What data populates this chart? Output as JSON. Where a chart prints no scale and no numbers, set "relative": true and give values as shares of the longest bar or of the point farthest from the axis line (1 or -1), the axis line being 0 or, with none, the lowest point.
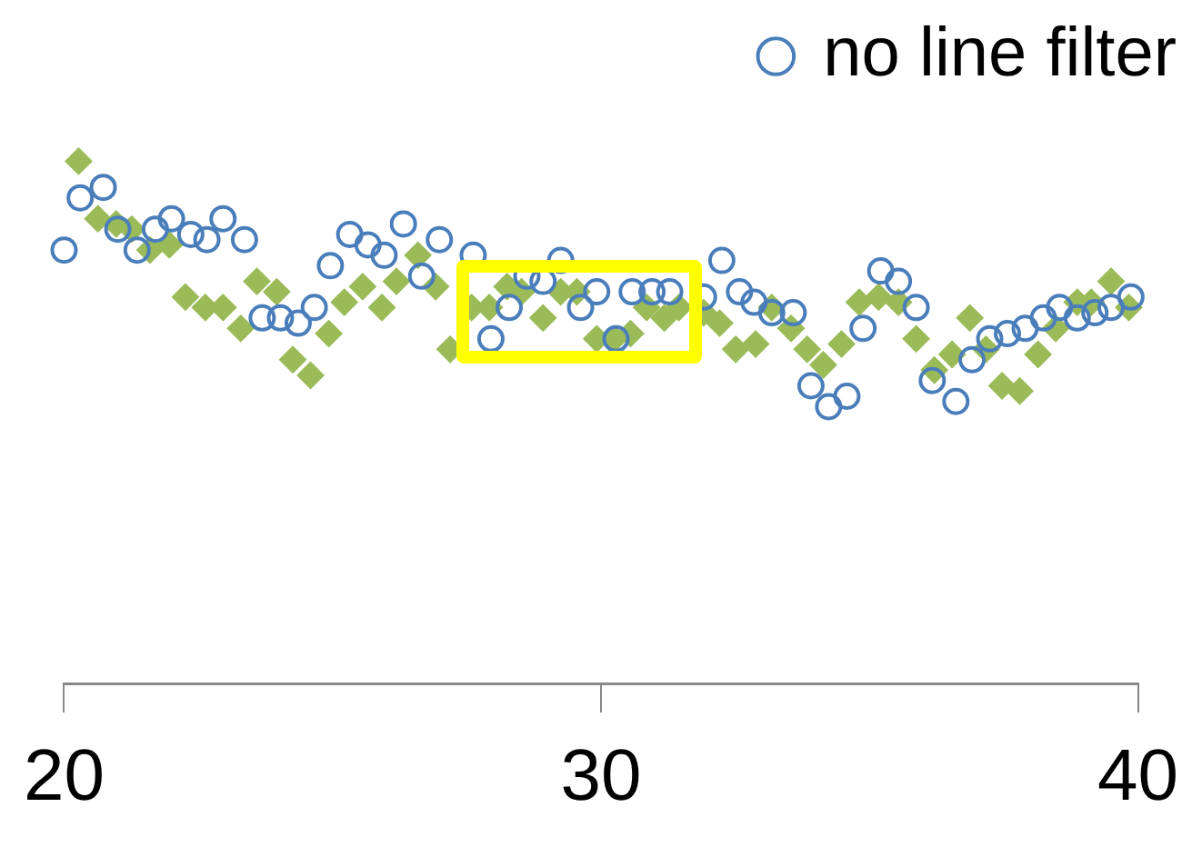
{
  "chart_data": {
    "type": "scatter",
    "relative": true,
    "xlim": [
      20,
      40
    ],
    "xticks": [
      20,
      30,
      40
    ],
    "legend": "top right",
    "grid": false,
    "series": [
      {
        "name": "no line filter",
        "color": "#4a7ebb",
        "marker": "circle",
        "x": [
          20.0,
          20.3,
          20.73,
          21.0,
          21.36,
          21.7,
          22.0,
          22.36,
          22.66,
          22.96,
          23.36,
          23.69,
          24.03,
          24.36,
          24.66,
          24.96,
          25.32,
          25.66,
          25.96,
          26.32,
          26.66,
          26.99,
          27.62,
          27.95,
          28.29,
          28.62,
          28.92,
          29.25,
          29.62,
          29.92,
          30.28,
          30.58,
          30.95,
          31.28,
          31.91,
          32.25,
          32.58,
          32.85,
          33.18,
          33.58,
          33.91,
          34.24,
          34.58,
          34.88,
          35.21,
          35.54,
          35.87,
          36.17,
          36.61,
          36.91,
          37.24,
          37.57,
          37.9,
          38.24,
          38.54,
          38.87,
          39.2,
          39.5,
          39.87
        ],
        "values": [
          0.83,
          0.93,
          0.95,
          0.87,
          0.83,
          0.87,
          0.89,
          0.86,
          0.85,
          0.89,
          0.85,
          0.7,
          0.7,
          0.69,
          0.72,
          0.8,
          0.86,
          0.84,
          0.82,
          0.88,
          0.78,
          0.85,
          0.82,
          0.66,
          0.72,
          0.78,
          0.77,
          0.81,
          0.72,
          0.75,
          0.66,
          0.75,
          0.75,
          0.75,
          0.74,
          0.81,
          0.75,
          0.73,
          0.71,
          0.71,
          0.57,
          0.53,
          0.55,
          0.68,
          0.79,
          0.77,
          0.72,
          0.58,
          0.54,
          0.62,
          0.66,
          0.67,
          0.68,
          0.7,
          0.72,
          0.7,
          0.71,
          0.72,
          0.74
        ]
      },
      {
        "color": "#9bbb59",
        "marker": "diamond",
        "x": [
          20.27,
          20.63,
          20.97,
          21.26,
          21.6,
          21.96,
          22.26,
          22.63,
          22.96,
          23.29,
          23.59,
          23.96,
          24.26,
          24.59,
          24.93,
          25.22,
          25.56,
          25.92,
          26.19,
          26.59,
          26.92,
          27.19,
          27.59,
          27.92,
          28.25,
          28.52,
          28.92,
          29.25,
          29.55,
          29.92,
          30.25,
          30.55,
          30.85,
          31.18,
          31.45,
          31.91,
          32.21,
          32.51,
          32.88,
          33.18,
          33.54,
          33.84,
          34.14,
          34.48,
          34.81,
          35.17,
          35.54,
          35.87,
          36.21,
          36.54,
          36.87,
          37.17,
          37.47,
          37.8,
          38.14,
          38.47,
          38.87,
          39.13,
          39.5,
          39.83
        ],
        "values": [
          1.0,
          0.89,
          0.88,
          0.87,
          0.83,
          0.84,
          0.74,
          0.72,
          0.72,
          0.68,
          0.77,
          0.75,
          0.62,
          0.59,
          0.67,
          0.73,
          0.76,
          0.72,
          0.77,
          0.82,
          0.76,
          0.64,
          0.72,
          0.72,
          0.76,
          0.75,
          0.7,
          0.75,
          0.75,
          0.66,
          0.66,
          0.67,
          0.72,
          0.7,
          0.72,
          0.71,
          0.69,
          0.64,
          0.65,
          0.72,
          0.68,
          0.64,
          0.61,
          0.65,
          0.73,
          0.74,
          0.73,
          0.66,
          0.6,
          0.63,
          0.7,
          0.64,
          0.57,
          0.56,
          0.63,
          0.68,
          0.73,
          0.73,
          0.77,
          0.72
        ]
      }
    ]
  }
}
